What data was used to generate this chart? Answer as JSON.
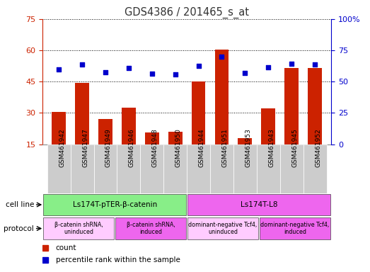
{
  "title": "GDS4386 / 201465_s_at",
  "samples": [
    "GSM461942",
    "GSM461947",
    "GSM461949",
    "GSM461946",
    "GSM461948",
    "GSM461950",
    "GSM461944",
    "GSM461951",
    "GSM461953",
    "GSM461943",
    "GSM461945",
    "GSM461952"
  ],
  "counts": [
    30.5,
    44.5,
    27.0,
    32.5,
    20.5,
    21.0,
    45.0,
    60.5,
    18.0,
    32.0,
    51.5,
    51.5
  ],
  "percentiles": [
    60.0,
    63.5,
    57.5,
    61.0,
    56.5,
    56.0,
    62.5,
    70.0,
    57.0,
    61.5,
    64.0,
    63.5
  ],
  "ylim_left": [
    15,
    75
  ],
  "ylim_right": [
    0,
    100
  ],
  "yticks_left": [
    15,
    30,
    45,
    60,
    75
  ],
  "yticks_right": [
    0,
    25,
    50,
    75,
    100
  ],
  "bar_color": "#cc2200",
  "dot_color": "#0000cc",
  "axis_color_left": "#cc2200",
  "axis_color_right": "#0000cc",
  "grid_color": "#000000",
  "label_bg_color": "#cccccc",
  "cell_line_groups": [
    {
      "label": "Ls174T-pTER-β-catenin",
      "start": 0,
      "end": 6,
      "color": "#88ee88"
    },
    {
      "label": "Ls174T-L8",
      "start": 6,
      "end": 12,
      "color": "#ee66ee"
    }
  ],
  "protocol_groups": [
    {
      "label": "β-catenin shRNA,\nuninduced",
      "start": 0,
      "end": 3,
      "color": "#ffccff"
    },
    {
      "label": "β-catenin shRNA,\ninduced",
      "start": 3,
      "end": 6,
      "color": "#ee66ee"
    },
    {
      "label": "dominant-negative Tcf4,\nuninduced",
      "start": 6,
      "end": 9,
      "color": "#ffccff"
    },
    {
      "label": "dominant-negative Tcf4,\ninduced",
      "start": 9,
      "end": 12,
      "color": "#ee66ee"
    }
  ],
  "legend_count_label": "count",
  "legend_pct_label": "percentile rank within the sample",
  "cell_line_label": "cell line",
  "protocol_label": "protocol",
  "fig_width": 5.23,
  "fig_height": 3.84,
  "dpi": 100
}
